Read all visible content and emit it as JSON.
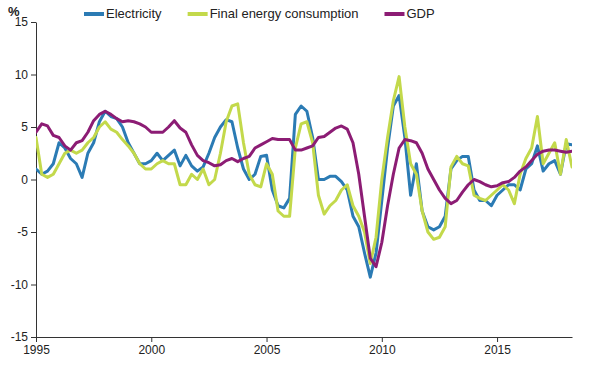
{
  "chart_data": {
    "type": "line",
    "y_label": "%",
    "x": [
      1995,
      1995.25,
      1995.5,
      1995.75,
      1996,
      1996.25,
      1996.5,
      1996.75,
      1997,
      1997.25,
      1997.5,
      1997.75,
      1998,
      1998.25,
      1998.5,
      1998.75,
      1999,
      1999.25,
      1999.5,
      1999.75,
      2000,
      2000.25,
      2000.5,
      2000.75,
      2001,
      2001.25,
      2001.5,
      2001.75,
      2002,
      2002.25,
      2002.5,
      2002.75,
      2003,
      2003.25,
      2003.5,
      2003.75,
      2004,
      2004.25,
      2004.5,
      2004.75,
      2005,
      2005.25,
      2005.5,
      2005.75,
      2006,
      2006.25,
      2006.5,
      2006.75,
      2007,
      2007.25,
      2007.5,
      2007.75,
      2008,
      2008.25,
      2008.5,
      2008.75,
      2009,
      2009.25,
      2009.5,
      2009.75,
      2010,
      2010.25,
      2010.5,
      2010.75,
      2011,
      2011.25,
      2011.5,
      2011.75,
      2012,
      2012.25,
      2012.5,
      2012.75,
      2013,
      2013.25,
      2013.5,
      2013.75,
      2014,
      2014.25,
      2014.5,
      2014.75,
      2015,
      2015.25,
      2015.5,
      2015.75,
      2016,
      2016.25,
      2016.5,
      2016.75,
      2017,
      2017.25,
      2017.5,
      2017.75,
      2018,
      2018.25
    ],
    "series": [
      {
        "name": "Electricity",
        "color": "#2b7bb4",
        "values": [
          1.0,
          0.5,
          0.8,
          1.5,
          3.5,
          3.0,
          2.0,
          1.5,
          0.2,
          2.5,
          3.5,
          5.5,
          6.5,
          6.0,
          5.8,
          5.0,
          3.5,
          2.5,
          1.5,
          1.5,
          1.8,
          2.5,
          1.8,
          2.3,
          2.8,
          1.3,
          2.3,
          1.3,
          0.8,
          1.2,
          2.5,
          4.0,
          5.0,
          5.7,
          5.5,
          3.0,
          1.0,
          0.0,
          0.5,
          2.2,
          2.3,
          -1.0,
          -2.5,
          -2.7,
          -1.8,
          6.2,
          7.0,
          6.5,
          4.0,
          0.0,
          0.0,
          0.3,
          0.3,
          -0.2,
          -1.0,
          -3.5,
          -4.5,
          -7.0,
          -9.3,
          -7.0,
          -2.0,
          3.0,
          7.0,
          8.0,
          4.0,
          -1.5,
          1.5,
          -3.0,
          -4.5,
          -4.8,
          -4.5,
          -3.5,
          1.0,
          1.8,
          2.2,
          2.2,
          -1.0,
          -2.0,
          -2.0,
          -2.5,
          -1.5,
          -1.0,
          -0.5,
          -0.5,
          -1.0,
          1.0,
          1.5,
          3.2,
          0.8,
          1.5,
          1.8,
          0.5,
          3.4,
          3.3
        ]
      },
      {
        "name": "Final energy consumption",
        "color": "#c3d94b",
        "values": [
          4.0,
          0.5,
          0.2,
          0.5,
          1.5,
          2.5,
          2.8,
          2.5,
          2.8,
          3.5,
          4.0,
          5.0,
          5.5,
          4.8,
          4.5,
          3.8,
          3.2,
          2.5,
          1.5,
          1.0,
          1.0,
          1.5,
          1.8,
          1.5,
          1.5,
          -0.5,
          -0.5,
          0.5,
          0.0,
          1.0,
          -0.5,
          0.0,
          2.5,
          5.5,
          7.0,
          7.2,
          3.5,
          0.5,
          -0.5,
          -0.7,
          1.5,
          0.5,
          -3.0,
          -3.5,
          -3.5,
          3.0,
          5.3,
          5.5,
          3.5,
          -1.5,
          -3.3,
          -2.5,
          -2.0,
          -1.0,
          -0.5,
          -2.5,
          -3.5,
          -5.0,
          -8.0,
          -5.5,
          0.0,
          4.0,
          7.5,
          9.8,
          5.0,
          1.5,
          0.5,
          -3.0,
          -5.0,
          -5.7,
          -5.5,
          -4.5,
          1.2,
          2.2,
          1.5,
          1.3,
          -1.5,
          -1.8,
          -2.0,
          -1.5,
          -1.0,
          -0.5,
          -1.0,
          -2.3,
          0.5,
          2.0,
          3.0,
          6.0,
          1.5,
          2.5,
          3.5,
          0.5,
          3.8,
          1.2
        ]
      },
      {
        "name": "GDP",
        "color": "#8c1c74",
        "values": [
          4.5,
          5.3,
          5.1,
          4.2,
          4.0,
          3.2,
          2.8,
          3.5,
          3.7,
          4.5,
          5.6,
          6.2,
          6.5,
          6.2,
          5.8,
          5.5,
          5.6,
          5.5,
          5.3,
          5.0,
          4.5,
          4.5,
          4.5,
          5.0,
          5.6,
          4.9,
          4.5,
          3.3,
          2.3,
          1.8,
          1.6,
          1.3,
          1.4,
          1.8,
          2.0,
          1.7,
          2.0,
          2.2,
          3.0,
          3.3,
          3.6,
          3.9,
          3.8,
          3.8,
          3.8,
          2.8,
          2.8,
          3.0,
          3.2,
          4.0,
          4.1,
          4.5,
          4.9,
          5.1,
          4.8,
          3.5,
          0.5,
          -3.5,
          -7.5,
          -8.3,
          -6.0,
          -2.5,
          0.5,
          3.0,
          3.8,
          3.7,
          3.5,
          2.5,
          1.0,
          0.0,
          -1.0,
          -1.8,
          -2.3,
          -2.0,
          -1.2,
          -0.5,
          0.0,
          -0.2,
          -0.5,
          -0.7,
          -0.6,
          -0.3,
          -0.2,
          0.2,
          0.8,
          1.2,
          1.8,
          2.4,
          2.7,
          2.8,
          2.8,
          2.7,
          2.6,
          2.7
        ]
      }
    ],
    "xlim": [
      1995,
      2018.25
    ],
    "xticks": [
      1995,
      2000,
      2005,
      2010,
      2015
    ],
    "ylim": [
      -15,
      15
    ],
    "yticks": [
      -15,
      -10,
      -5,
      0,
      5,
      10,
      15
    ],
    "grid": false,
    "legend": "top"
  }
}
